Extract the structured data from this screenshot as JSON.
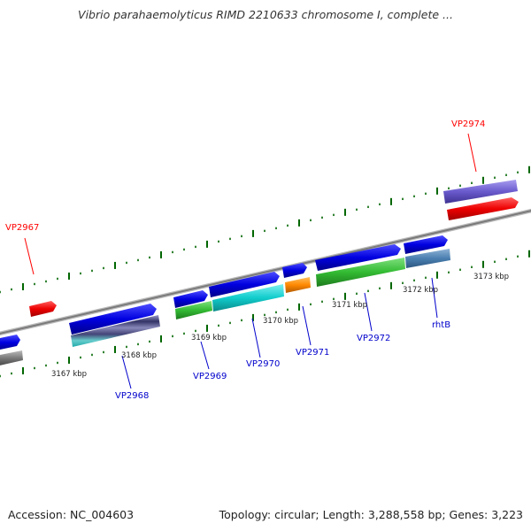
{
  "title": "Vibrio parahaemolyticus RIMD 2210633 chromosome I, complete ...",
  "footer": {
    "accession": "Accession: NC_004603",
    "summary": "Topology: circular; Length: 3,288,558 bp; Genes: 3,223"
  },
  "colors": {
    "highlight": "#ff0000",
    "gene": "#0000cc",
    "backbone": "#888888",
    "tick": "#006600"
  },
  "gene_labels": [
    {
      "text": "VP2967",
      "color": "#ff0000"
    },
    {
      "text": "VP2968",
      "color": "#0000cc"
    },
    {
      "text": "VP2969",
      "color": "#0000cc"
    },
    {
      "text": "VP2970",
      "color": "#0000cc"
    },
    {
      "text": "VP2971",
      "color": "#0000cc"
    },
    {
      "text": "VP2972",
      "color": "#0000cc"
    },
    {
      "text": "rhtB",
      "color": "#0000cc"
    },
    {
      "text": "VP2974",
      "color": "#ff0000"
    }
  ],
  "tick_labels": [
    "3167 kbp",
    "3168 kbp",
    "3169 kbp",
    "3170 kbp",
    "3171 kbp",
    "3172 kbp",
    "3173 kbp"
  ]
}
